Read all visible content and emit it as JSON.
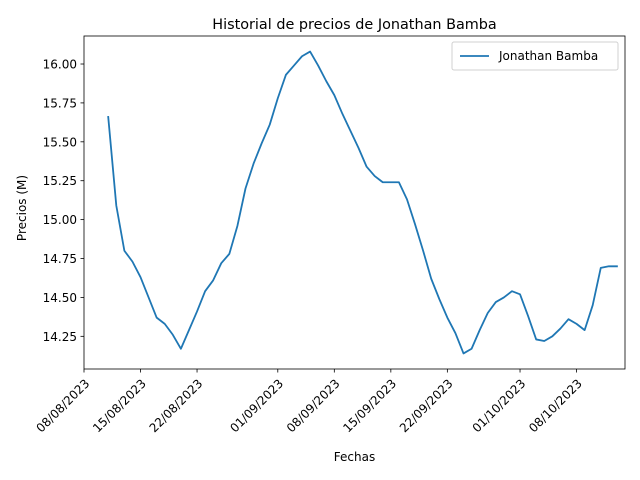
{
  "chart_data": {
    "type": "line",
    "title": "Historial de precios de Jonathan Bamba",
    "xlabel": "Fechas",
    "ylabel": "Precios (M)",
    "x_ticks": [
      "2023-08-08",
      "2023-08-15",
      "2023-08-22",
      "2023-09-01",
      "2023-09-08",
      "2023-09-15",
      "2023-09-22",
      "2023-10-01",
      "2023-10-08"
    ],
    "x_tick_labels": [
      "08/08/2023",
      "15/08/2023",
      "22/08/2023",
      "01/09/2023",
      "08/09/2023",
      "15/09/2023",
      "22/09/2023",
      "01/10/2023",
      "08/10/2023"
    ],
    "y_ticks": [
      14.25,
      14.5,
      14.75,
      15.0,
      15.25,
      15.5,
      15.75,
      16.0
    ],
    "y_tick_labels": [
      "14.25",
      "14.50",
      "14.75",
      "15.00",
      "15.25",
      "15.50",
      "15.75",
      "16.00"
    ],
    "xlim": [
      "2023-08-08",
      "2023-10-14"
    ],
    "ylim": [
      14.04,
      16.18
    ],
    "grid": false,
    "legend_position": "upper right",
    "series": [
      {
        "name": "Jonathan Bamba",
        "color": "#1f77b4",
        "x": [
          "2023-08-11",
          "2023-08-12",
          "2023-08-13",
          "2023-08-14",
          "2023-08-15",
          "2023-08-16",
          "2023-08-17",
          "2023-08-18",
          "2023-08-19",
          "2023-08-20",
          "2023-08-21",
          "2023-08-22",
          "2023-08-23",
          "2023-08-24",
          "2023-08-25",
          "2023-08-26",
          "2023-08-27",
          "2023-08-28",
          "2023-08-29",
          "2023-08-30",
          "2023-08-31",
          "2023-09-01",
          "2023-09-02",
          "2023-09-03",
          "2023-09-04",
          "2023-09-05",
          "2023-09-06",
          "2023-09-07",
          "2023-09-08",
          "2023-09-09",
          "2023-09-10",
          "2023-09-11",
          "2023-09-12",
          "2023-09-13",
          "2023-09-14",
          "2023-09-15",
          "2023-09-16",
          "2023-09-17",
          "2023-09-18",
          "2023-09-19",
          "2023-09-20",
          "2023-09-21",
          "2023-09-22",
          "2023-09-23",
          "2023-09-24",
          "2023-09-25",
          "2023-09-26",
          "2023-09-27",
          "2023-09-28",
          "2023-09-29",
          "2023-09-30",
          "2023-10-01",
          "2023-10-02",
          "2023-10-03",
          "2023-10-04",
          "2023-10-05",
          "2023-10-06",
          "2023-10-07",
          "2023-10-08",
          "2023-10-09",
          "2023-10-10",
          "2023-10-11",
          "2023-10-12",
          "2023-10-13"
        ],
        "y": [
          15.66,
          15.09,
          14.8,
          14.73,
          14.63,
          14.5,
          14.37,
          14.33,
          14.26,
          14.17,
          14.29,
          14.41,
          14.54,
          14.61,
          14.72,
          14.78,
          14.96,
          15.2,
          15.36,
          15.49,
          15.61,
          15.78,
          15.93,
          15.99,
          16.05,
          16.08,
          15.99,
          15.89,
          15.8,
          15.68,
          15.57,
          15.46,
          15.34,
          15.28,
          15.24,
          15.24,
          15.24,
          15.13,
          14.97,
          14.8,
          14.62,
          14.49,
          14.37,
          14.27,
          14.14,
          14.17,
          14.29,
          14.4,
          14.47,
          14.5,
          14.54,
          14.52,
          14.38,
          14.23,
          14.22,
          14.25,
          14.3,
          14.36,
          14.33,
          14.29,
          14.45,
          14.69,
          14.7,
          14.7
        ]
      }
    ]
  }
}
